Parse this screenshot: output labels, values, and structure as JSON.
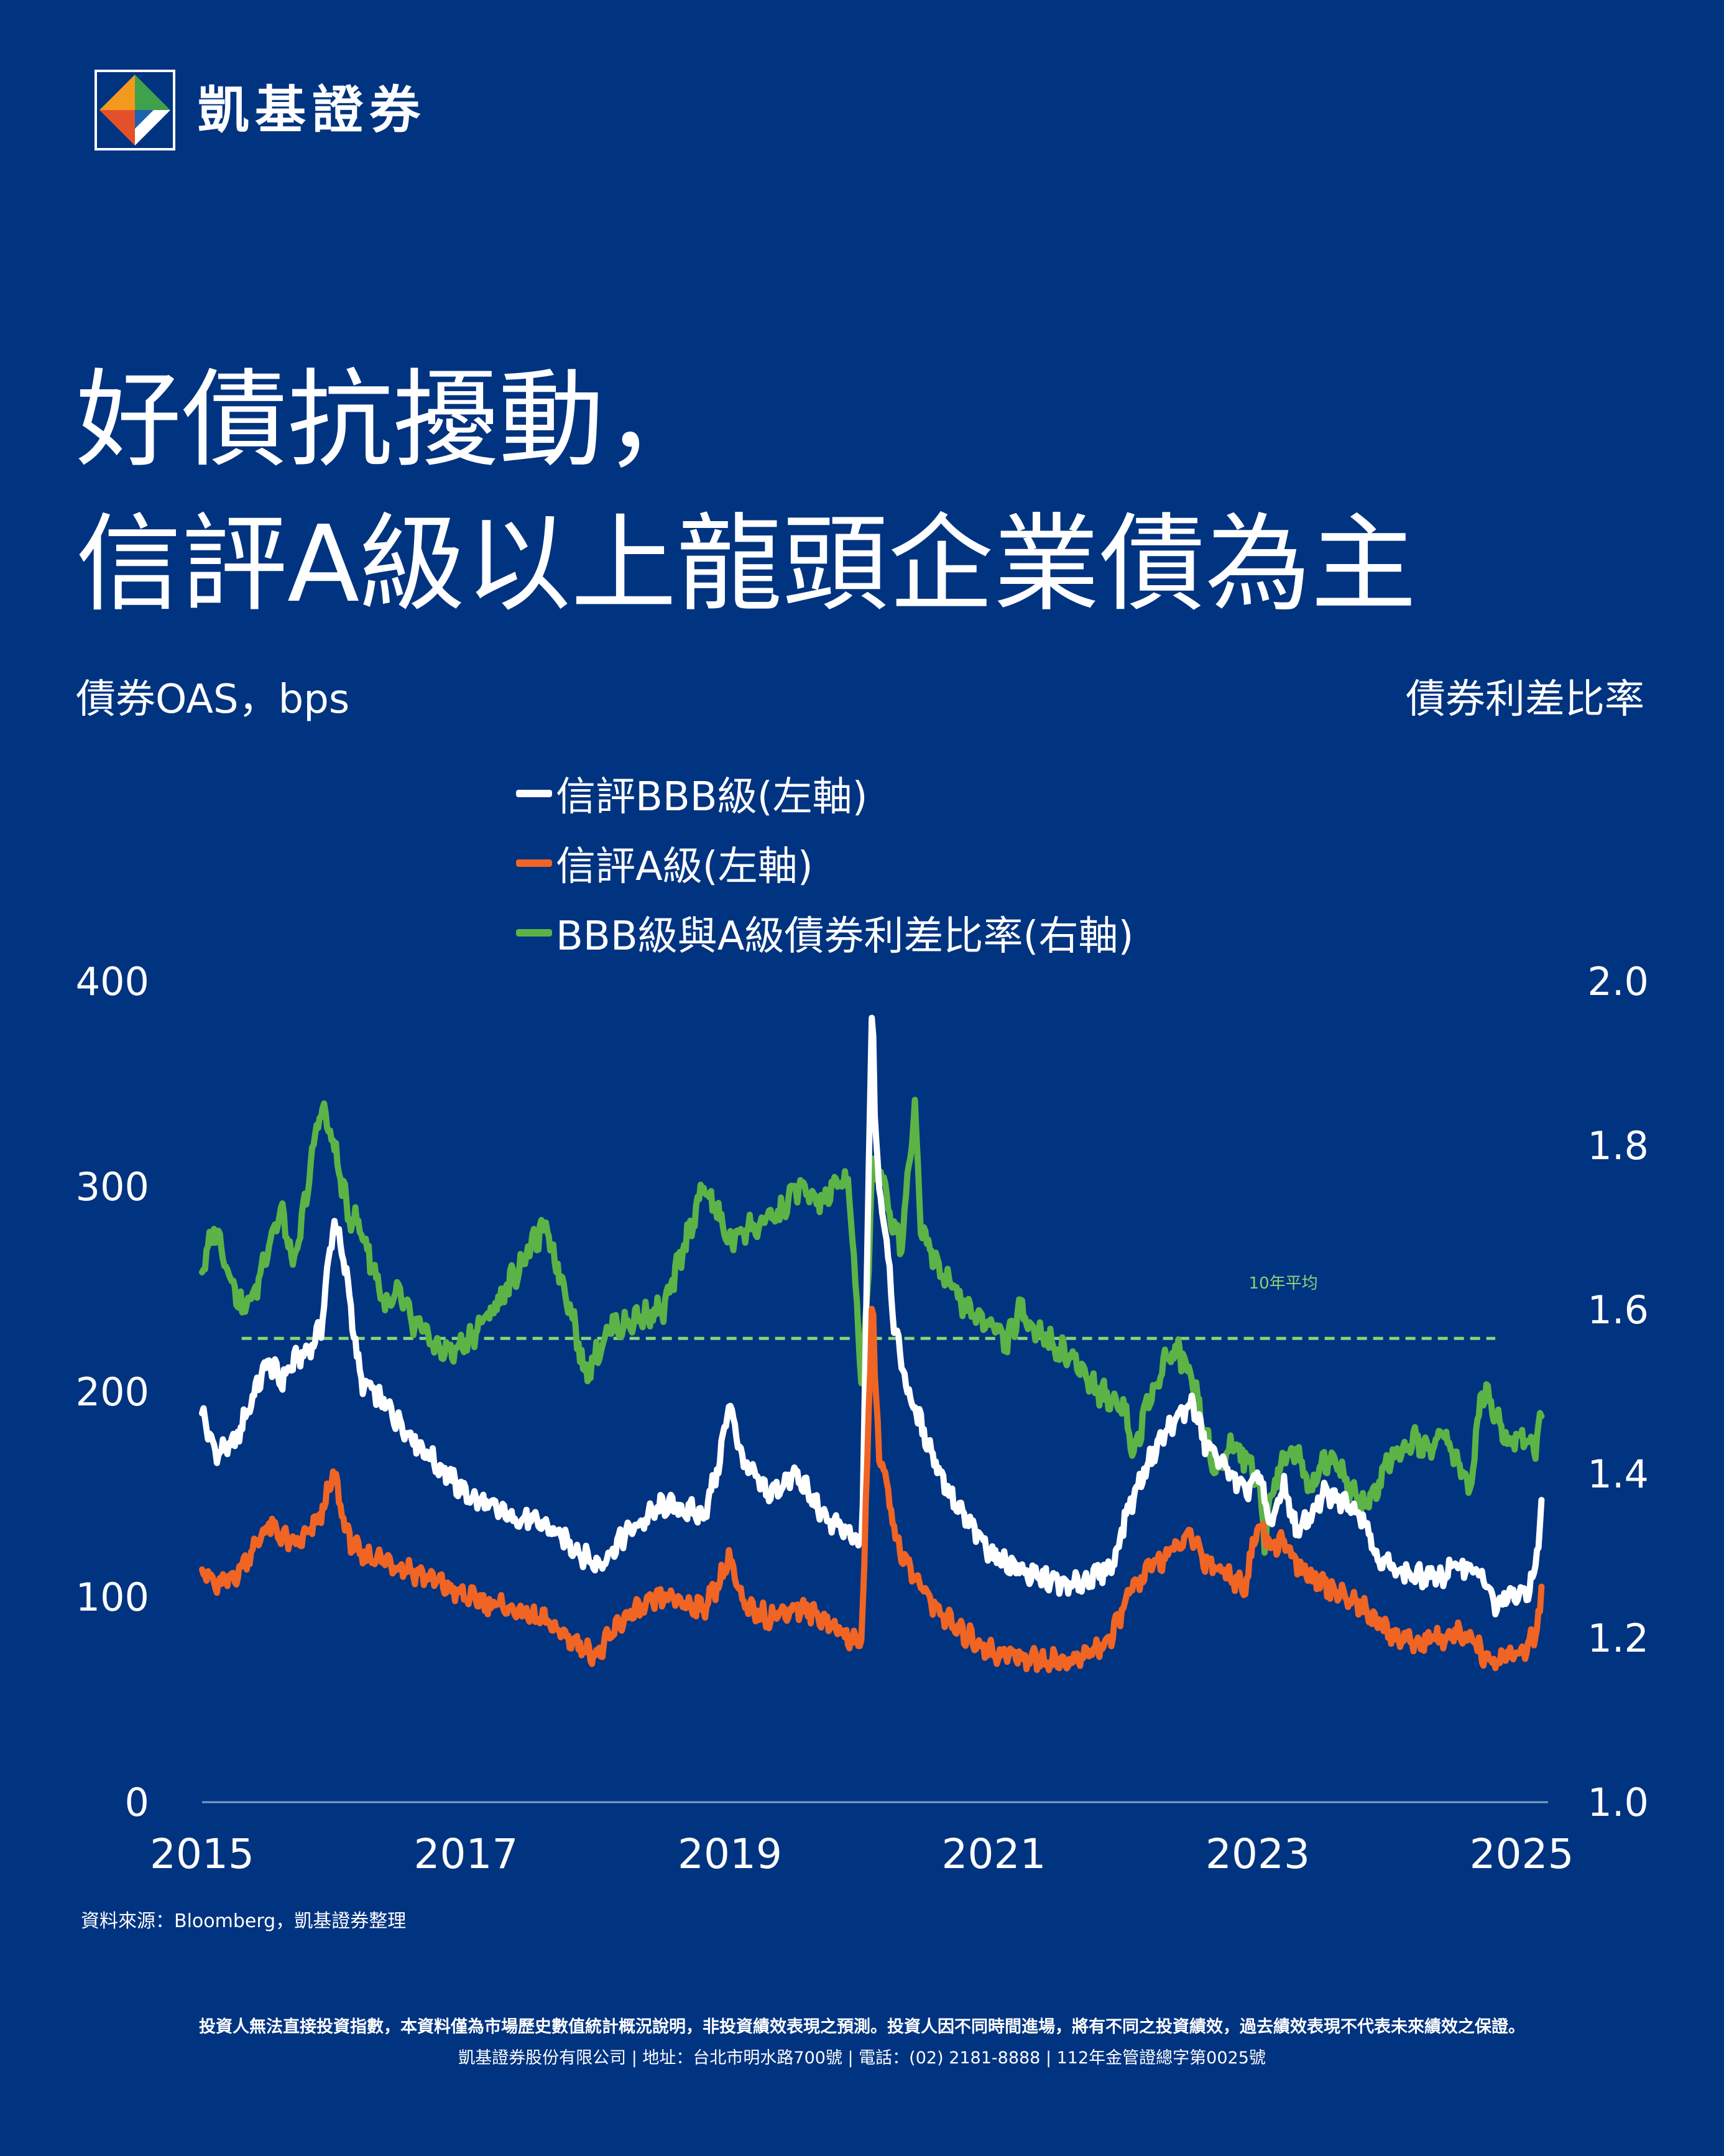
{
  "brand": {
    "name": "凱基證券"
  },
  "headline": {
    "line1": "好債抗擾動，",
    "line2": "信評A級以上龍頭企業債為主"
  },
  "colors": {
    "background": "#003380",
    "bbb": "#ffffff",
    "a": "#f06424",
    "ratio": "#5cb346",
    "avg": "#8cd17a",
    "baseline": "#7f9cc6"
  },
  "chart_data": {
    "type": "line",
    "ylabel_left": "債券OAS，bps",
    "ylabel_right": "債券利差比率",
    "ylim_left": [
      0,
      400
    ],
    "ylim_right": [
      1.0,
      2.0
    ],
    "yticks_left": [
      "0",
      "100",
      "200",
      "300",
      "400"
    ],
    "yticks_right": [
      "1.0",
      "1.2",
      "1.4",
      "1.6",
      "1.8",
      "2.0"
    ],
    "xlim": [
      2015,
      2025.2
    ],
    "xticks": [
      "2015",
      "2017",
      "2019",
      "2021",
      "2023",
      "2025"
    ],
    "legend_position": "top-center",
    "annotation": "10年平均",
    "average_ratio": 1.565,
    "series": [
      {
        "name": "信評BBB級(左軸)",
        "axis": "left",
        "color": "#ffffff",
        "x": [
          2015.0,
          2015.1,
          2015.25,
          2015.4,
          2015.5,
          2015.6,
          2015.7,
          2015.8,
          2015.9,
          2016.0,
          2016.1,
          2016.2,
          2016.3,
          2016.5,
          2016.7,
          2017.0,
          2017.3,
          2017.6,
          2017.9,
          2018.0,
          2018.2,
          2018.5,
          2018.8,
          2018.9,
          2019.0,
          2019.1,
          2019.3,
          2019.5,
          2019.7,
          2019.9,
          2020.0,
          2020.08,
          2020.1,
          2020.13,
          2020.18,
          2020.25,
          2020.35,
          2020.5,
          2020.7,
          2021.0,
          2021.3,
          2021.6,
          2021.9,
          2022.0,
          2022.2,
          2022.3,
          2022.5,
          2022.6,
          2022.8,
          2022.9,
          2023.0,
          2023.1,
          2023.2,
          2023.3,
          2023.5,
          2023.7,
          2023.8,
          2023.9,
          2024.0,
          2024.2,
          2024.4,
          2024.5,
          2024.6,
          2024.7,
          2024.8,
          2024.9,
          2025.0,
          2025.1,
          2025.15
        ],
        "y": [
          190,
          170,
          175,
          200,
          215,
          205,
          215,
          220,
          230,
          285,
          255,
          205,
          200,
          185,
          170,
          150,
          140,
          135,
          120,
          115,
          130,
          145,
          140,
          160,
          195,
          165,
          150,
          160,
          140,
          130,
          125,
          400,
          330,
          300,
          280,
          230,
          200,
          175,
          145,
          120,
          110,
          105,
          115,
          140,
          170,
          180,
          195,
          175,
          160,
          150,
          160,
          135,
          155,
          130,
          150,
          145,
          140,
          120,
          115,
          110,
          110,
          115,
          115,
          110,
          95,
          100,
          100,
          110,
          145
        ]
      },
      {
        "name": "信評A級(左軸)",
        "axis": "left",
        "color": "#f06424",
        "x": [
          2015.0,
          2015.1,
          2015.25,
          2015.4,
          2015.5,
          2015.6,
          2015.7,
          2015.8,
          2015.9,
          2016.0,
          2016.1,
          2016.2,
          2016.3,
          2016.5,
          2016.7,
          2017.0,
          2017.3,
          2017.6,
          2017.9,
          2018.0,
          2018.2,
          2018.5,
          2018.8,
          2018.9,
          2019.0,
          2019.1,
          2019.3,
          2019.5,
          2019.7,
          2019.9,
          2020.0,
          2020.08,
          2020.1,
          2020.13,
          2020.18,
          2020.25,
          2020.35,
          2020.5,
          2020.7,
          2021.0,
          2021.3,
          2021.6,
          2021.9,
          2022.0,
          2022.2,
          2022.3,
          2022.5,
          2022.6,
          2022.8,
          2022.9,
          2023.0,
          2023.1,
          2023.2,
          2023.3,
          2023.5,
          2023.7,
          2023.8,
          2023.9,
          2024.0,
          2024.2,
          2024.4,
          2024.5,
          2024.6,
          2024.7,
          2024.8,
          2024.9,
          2025.0,
          2025.1,
          2025.15
        ],
        "y": [
          115,
          105,
          110,
          125,
          135,
          130,
          125,
          130,
          140,
          160,
          130,
          120,
          120,
          115,
          110,
          100,
          95,
          88,
          75,
          72,
          90,
          100,
          95,
          105,
          120,
          95,
          90,
          95,
          90,
          80,
          78,
          250,
          205,
          170,
          160,
          130,
          115,
          100,
          85,
          73,
          70,
          68,
          80,
          100,
          115,
          120,
          130,
          118,
          110,
          105,
          135,
          125,
          128,
          115,
          105,
          100,
          95,
          88,
          82,
          78,
          80,
          82,
          80,
          72,
          68,
          72,
          73,
          80,
          100
        ]
      },
      {
        "name": "BBB級與A級債券利差比率(右軸)",
        "axis": "right",
        "color": "#5cb346",
        "x": [
          2015.0,
          2015.1,
          2015.2,
          2015.3,
          2015.4,
          2015.5,
          2015.6,
          2015.7,
          2015.8,
          2015.9,
          2016.0,
          2016.1,
          2016.2,
          2016.3,
          2016.4,
          2016.5,
          2016.6,
          2016.7,
          2016.8,
          2016.9,
          2017.0,
          2017.2,
          2017.4,
          2017.5,
          2017.6,
          2017.8,
          2017.9,
          2018.0,
          2018.1,
          2018.2,
          2018.3,
          2018.5,
          2018.8,
          2018.9,
          2019.0,
          2019.1,
          2019.2,
          2019.4,
          2019.5,
          2019.7,
          2019.8,
          2019.9,
          2020.0,
          2020.05,
          2020.08,
          2020.1,
          2020.13,
          2020.2,
          2020.3,
          2020.4,
          2020.45,
          2020.5,
          2020.6,
          2020.8,
          2021.0,
          2021.1,
          2021.2,
          2021.3,
          2021.5,
          2021.6,
          2021.8,
          2022.0,
          2022.05,
          2022.1,
          2022.2,
          2022.3,
          2022.4,
          2022.5,
          2022.6,
          2022.7,
          2022.8,
          2022.9,
          2023.0,
          2023.05,
          2023.1,
          2023.2,
          2023.3,
          2023.4,
          2023.5,
          2023.6,
          2023.7,
          2023.8,
          2023.9,
          2024.0,
          2024.1,
          2024.2,
          2024.3,
          2024.4,
          2024.5,
          2024.6,
          2024.7,
          2024.8,
          2024.9,
          2025.0,
          2025.1,
          2025.15
        ],
        "y": [
          1.65,
          1.7,
          1.65,
          1.6,
          1.62,
          1.68,
          1.72,
          1.65,
          1.75,
          1.85,
          1.8,
          1.72,
          1.7,
          1.65,
          1.6,
          1.62,
          1.58,
          1.57,
          1.55,
          1.55,
          1.56,
          1.6,
          1.65,
          1.68,
          1.7,
          1.6,
          1.52,
          1.55,
          1.58,
          1.58,
          1.59,
          1.6,
          1.75,
          1.72,
          1.68,
          1.7,
          1.7,
          1.72,
          1.75,
          1.73,
          1.75,
          1.76,
          1.5,
          1.65,
          1.8,
          1.75,
          1.78,
          1.72,
          1.68,
          1.85,
          1.7,
          1.68,
          1.65,
          1.6,
          1.58,
          1.56,
          1.6,
          1.58,
          1.55,
          1.54,
          1.5,
          1.48,
          1.42,
          1.45,
          1.5,
          1.54,
          1.55,
          1.52,
          1.45,
          1.4,
          1.44,
          1.42,
          1.4,
          1.32,
          1.38,
          1.42,
          1.43,
          1.38,
          1.42,
          1.41,
          1.38,
          1.36,
          1.38,
          1.42,
          1.42,
          1.44,
          1.43,
          1.45,
          1.42,
          1.38,
          1.5,
          1.48,
          1.44,
          1.45,
          1.43,
          1.47
        ]
      }
    ]
  },
  "source_note": "資料來源：Bloomberg，凱基證券整理",
  "disclaimer": {
    "line1": "投資人無法直接投資指數，本資料僅為市場歷史數值統計概況說明，非投資績效表現之預測。投資人因不同時間進場，將有不同之投資績效，過去績效表現不代表未來績效之保證。",
    "line2": "凱基證券股份有限公司 | 地址：台北市明水路700號 | 電話：(02) 2181-8888 | 112年金管證總字第0025號"
  }
}
